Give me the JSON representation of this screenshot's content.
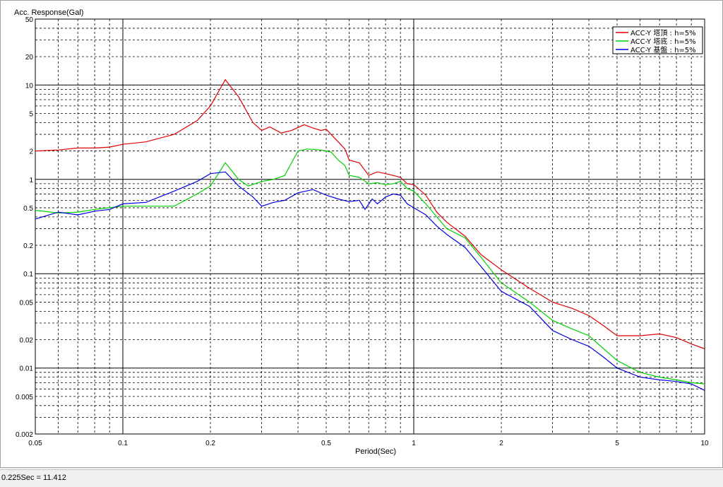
{
  "status": {
    "text": "0.225Sec = 11.412"
  },
  "chart_data": {
    "type": "line",
    "ylabel": "Acc. Response(Gal)",
    "xlabel": "Period(Sec)",
    "xscale": "log",
    "yscale": "log",
    "xlim": [
      0.05,
      10
    ],
    "ylim": [
      0.002,
      50
    ],
    "grid": true,
    "legend_position": "top-right",
    "x_tick_labels": [
      {
        "value": 0.05,
        "label": "0.05"
      },
      {
        "value": 0.1,
        "label": "0.1"
      },
      {
        "value": 0.2,
        "label": "0.2"
      },
      {
        "value": 0.5,
        "label": "0.5"
      },
      {
        "value": 1,
        "label": "1"
      },
      {
        "value": 2,
        "label": "2"
      },
      {
        "value": 5,
        "label": "5"
      },
      {
        "value": 10,
        "label": "10"
      }
    ],
    "y_tick_labels": [
      {
        "value": 50,
        "label": "50"
      },
      {
        "value": 20,
        "label": "20"
      },
      {
        "value": 10,
        "label": "10"
      },
      {
        "value": 5,
        "label": "5"
      },
      {
        "value": 2,
        "label": "2"
      },
      {
        "value": 1,
        "label": "1"
      },
      {
        "value": 0.5,
        "label": "0.5"
      },
      {
        "value": 0.2,
        "label": "0.2"
      },
      {
        "value": 0.1,
        "label": "0.1"
      },
      {
        "value": 0.05,
        "label": "0.05"
      },
      {
        "value": 0.02,
        "label": "0.02"
      },
      {
        "value": 0.01,
        "label": "0.01"
      },
      {
        "value": 0.005,
        "label": "0.005"
      },
      {
        "value": 0.002,
        "label": "0.002"
      }
    ],
    "series": [
      {
        "name": "ACC-Y 塔頂 : h=5%",
        "color": "#e00000",
        "points": [
          [
            0.05,
            2.0
          ],
          [
            0.06,
            2.05
          ],
          [
            0.07,
            2.15
          ],
          [
            0.08,
            2.15
          ],
          [
            0.09,
            2.2
          ],
          [
            0.1,
            2.35
          ],
          [
            0.12,
            2.5
          ],
          [
            0.15,
            3.0
          ],
          [
            0.18,
            4.2
          ],
          [
            0.2,
            6.0
          ],
          [
            0.225,
            11.4
          ],
          [
            0.25,
            7.5
          ],
          [
            0.28,
            4.0
          ],
          [
            0.3,
            3.3
          ],
          [
            0.32,
            3.6
          ],
          [
            0.35,
            3.1
          ],
          [
            0.38,
            3.3
          ],
          [
            0.42,
            3.8
          ],
          [
            0.45,
            3.5
          ],
          [
            0.48,
            3.3
          ],
          [
            0.5,
            3.4
          ],
          [
            0.55,
            2.5
          ],
          [
            0.58,
            2.1
          ],
          [
            0.6,
            1.6
          ],
          [
            0.65,
            1.5
          ],
          [
            0.7,
            1.1
          ],
          [
            0.75,
            1.2
          ],
          [
            0.8,
            1.15
          ],
          [
            0.85,
            1.1
          ],
          [
            0.9,
            1.05
          ],
          [
            0.95,
            0.9
          ],
          [
            1.0,
            0.88
          ],
          [
            1.1,
            0.68
          ],
          [
            1.2,
            0.45
          ],
          [
            1.3,
            0.35
          ],
          [
            1.5,
            0.25
          ],
          [
            1.7,
            0.16
          ],
          [
            2.0,
            0.11
          ],
          [
            2.5,
            0.07
          ],
          [
            3.0,
            0.05
          ],
          [
            3.5,
            0.043
          ],
          [
            4.0,
            0.036
          ],
          [
            4.5,
            0.028
          ],
          [
            5.0,
            0.022
          ],
          [
            6.0,
            0.022
          ],
          [
            7.0,
            0.023
          ],
          [
            8.0,
            0.021
          ],
          [
            9.0,
            0.018
          ],
          [
            10.0,
            0.016
          ]
        ]
      },
      {
        "name": "ACC-Y 塔底 : h=5%",
        "color": "#00d000",
        "points": [
          [
            0.05,
            0.47
          ],
          [
            0.06,
            0.44
          ],
          [
            0.07,
            0.45
          ],
          [
            0.08,
            0.48
          ],
          [
            0.09,
            0.5
          ],
          [
            0.1,
            0.52
          ],
          [
            0.12,
            0.52
          ],
          [
            0.15,
            0.52
          ],
          [
            0.18,
            0.7
          ],
          [
            0.2,
            0.85
          ],
          [
            0.225,
            1.5
          ],
          [
            0.25,
            1.0
          ],
          [
            0.27,
            0.85
          ],
          [
            0.3,
            0.95
          ],
          [
            0.33,
            1.0
          ],
          [
            0.36,
            1.1
          ],
          [
            0.4,
            2.0
          ],
          [
            0.43,
            2.1
          ],
          [
            0.48,
            2.05
          ],
          [
            0.52,
            1.95
          ],
          [
            0.55,
            1.6
          ],
          [
            0.58,
            1.4
          ],
          [
            0.6,
            1.1
          ],
          [
            0.65,
            1.05
          ],
          [
            0.7,
            0.9
          ],
          [
            0.75,
            0.92
          ],
          [
            0.8,
            0.88
          ],
          [
            0.85,
            0.9
          ],
          [
            0.9,
            0.95
          ],
          [
            0.95,
            0.8
          ],
          [
            1.0,
            0.75
          ],
          [
            1.1,
            0.55
          ],
          [
            1.2,
            0.4
          ],
          [
            1.3,
            0.3
          ],
          [
            1.5,
            0.24
          ],
          [
            1.7,
            0.15
          ],
          [
            2.0,
            0.08
          ],
          [
            2.5,
            0.05
          ],
          [
            3.0,
            0.032
          ],
          [
            3.5,
            0.026
          ],
          [
            4.0,
            0.022
          ],
          [
            4.5,
            0.016
          ],
          [
            5.0,
            0.012
          ],
          [
            6.0,
            0.009
          ],
          [
            7.0,
            0.008
          ],
          [
            8.0,
            0.0075
          ],
          [
            9.0,
            0.007
          ],
          [
            10.0,
            0.0068
          ]
        ]
      },
      {
        "name": "ACC-Y 基盤 : h=5%",
        "color": "#0000e0",
        "points": [
          [
            0.05,
            0.38
          ],
          [
            0.06,
            0.45
          ],
          [
            0.07,
            0.42
          ],
          [
            0.08,
            0.46
          ],
          [
            0.09,
            0.48
          ],
          [
            0.1,
            0.55
          ],
          [
            0.12,
            0.57
          ],
          [
            0.15,
            0.75
          ],
          [
            0.18,
            0.95
          ],
          [
            0.2,
            1.15
          ],
          [
            0.225,
            1.2
          ],
          [
            0.25,
            0.85
          ],
          [
            0.28,
            0.65
          ],
          [
            0.3,
            0.52
          ],
          [
            0.33,
            0.57
          ],
          [
            0.36,
            0.6
          ],
          [
            0.4,
            0.72
          ],
          [
            0.45,
            0.78
          ],
          [
            0.5,
            0.68
          ],
          [
            0.55,
            0.62
          ],
          [
            0.6,
            0.58
          ],
          [
            0.65,
            0.6
          ],
          [
            0.68,
            0.48
          ],
          [
            0.72,
            0.62
          ],
          [
            0.75,
            0.55
          ],
          [
            0.8,
            0.65
          ],
          [
            0.85,
            0.7
          ],
          [
            0.9,
            0.68
          ],
          [
            0.95,
            0.55
          ],
          [
            1.0,
            0.5
          ],
          [
            1.1,
            0.42
          ],
          [
            1.2,
            0.32
          ],
          [
            1.3,
            0.26
          ],
          [
            1.5,
            0.19
          ],
          [
            1.7,
            0.12
          ],
          [
            2.0,
            0.065
          ],
          [
            2.5,
            0.045
          ],
          [
            3.0,
            0.025
          ],
          [
            3.5,
            0.02
          ],
          [
            4.0,
            0.017
          ],
          [
            4.5,
            0.013
          ],
          [
            5.0,
            0.01
          ],
          [
            6.0,
            0.008
          ],
          [
            7.0,
            0.0075
          ],
          [
            8.0,
            0.0072
          ],
          [
            9.0,
            0.0068
          ],
          [
            10.0,
            0.0058
          ]
        ]
      }
    ]
  }
}
